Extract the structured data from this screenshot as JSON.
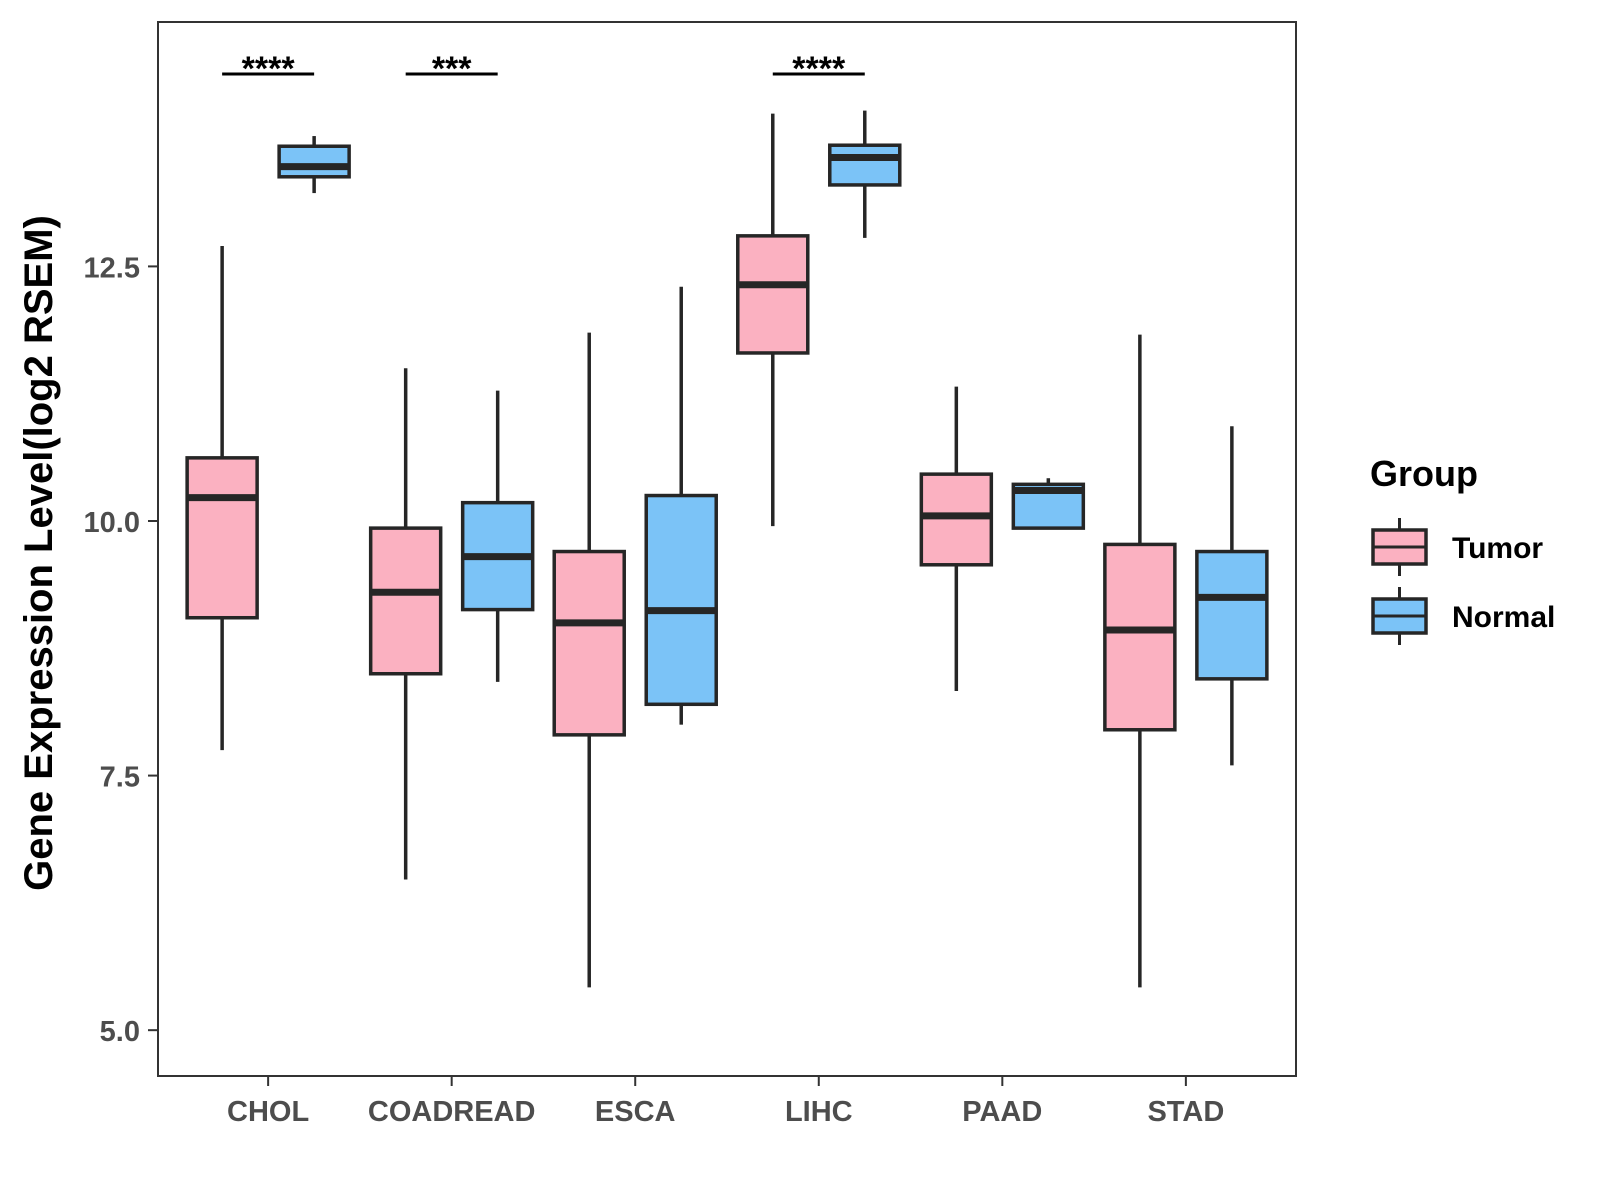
{
  "chart_data": {
    "type": "boxplot",
    "title": "",
    "xlabel": "",
    "ylabel": "Gene Expression Level(log2 RSEM)",
    "ylim": [
      4.55,
      14.9
    ],
    "y_ticks": [
      5.0,
      7.5,
      10.0,
      12.5
    ],
    "y_tick_labels": [
      "5.0",
      "7.5",
      "10.0",
      "12.5"
    ],
    "categories": [
      "CHOL",
      "COADREAD",
      "ESCA",
      "LIHC",
      "PAAD",
      "STAD"
    ],
    "legend": {
      "title": "Group",
      "position": "right",
      "entries": [
        "Tumor",
        "Normal"
      ]
    },
    "series": [
      {
        "name": "Tumor",
        "color": "#fbb1c1",
        "boxes": [
          {
            "category": "CHOL",
            "whisker_low": 7.75,
            "q1": 9.05,
            "median": 10.23,
            "q3": 10.62,
            "whisker_high": 12.7
          },
          {
            "category": "COADREAD",
            "whisker_low": 6.48,
            "q1": 8.5,
            "median": 9.3,
            "q3": 9.93,
            "whisker_high": 11.5
          },
          {
            "category": "ESCA",
            "whisker_low": 5.42,
            "q1": 7.9,
            "median": 9.0,
            "q3": 9.7,
            "whisker_high": 11.85
          },
          {
            "category": "LIHC",
            "whisker_low": 9.95,
            "q1": 11.65,
            "median": 12.32,
            "q3": 12.8,
            "whisker_high": 14.0
          },
          {
            "category": "PAAD",
            "whisker_low": 8.33,
            "q1": 9.57,
            "median": 10.05,
            "q3": 10.46,
            "whisker_high": 11.32
          },
          {
            "category": "STAD",
            "whisker_low": 5.42,
            "q1": 7.95,
            "median": 8.93,
            "q3": 9.77,
            "whisker_high": 11.83
          }
        ]
      },
      {
        "name": "Normal",
        "color": "#7bc3f7",
        "boxes": [
          {
            "category": "CHOL",
            "whisker_low": 13.22,
            "q1": 13.38,
            "median": 13.48,
            "q3": 13.68,
            "whisker_high": 13.78
          },
          {
            "category": "COADREAD",
            "whisker_low": 8.42,
            "q1": 9.13,
            "median": 9.65,
            "q3": 10.18,
            "whisker_high": 11.28
          },
          {
            "category": "ESCA",
            "whisker_low": 8.0,
            "q1": 8.2,
            "median": 9.12,
            "q3": 10.25,
            "whisker_high": 12.3
          },
          {
            "category": "LIHC",
            "whisker_low": 12.78,
            "q1": 13.3,
            "median": 13.57,
            "q3": 13.69,
            "whisker_high": 14.03
          },
          {
            "category": "PAAD",
            "whisker_low": 9.93,
            "q1": 9.93,
            "median": 10.3,
            "q3": 10.36,
            "whisker_high": 10.42
          },
          {
            "category": "STAD",
            "whisker_low": 7.6,
            "q1": 8.45,
            "median": 9.25,
            "q3": 9.7,
            "whisker_high": 10.93
          }
        ]
      }
    ],
    "annotations": [
      {
        "category": "CHOL",
        "label": "****"
      },
      {
        "category": "COADREAD",
        "label": "***"
      },
      {
        "category": "LIHC",
        "label": "****"
      }
    ]
  }
}
